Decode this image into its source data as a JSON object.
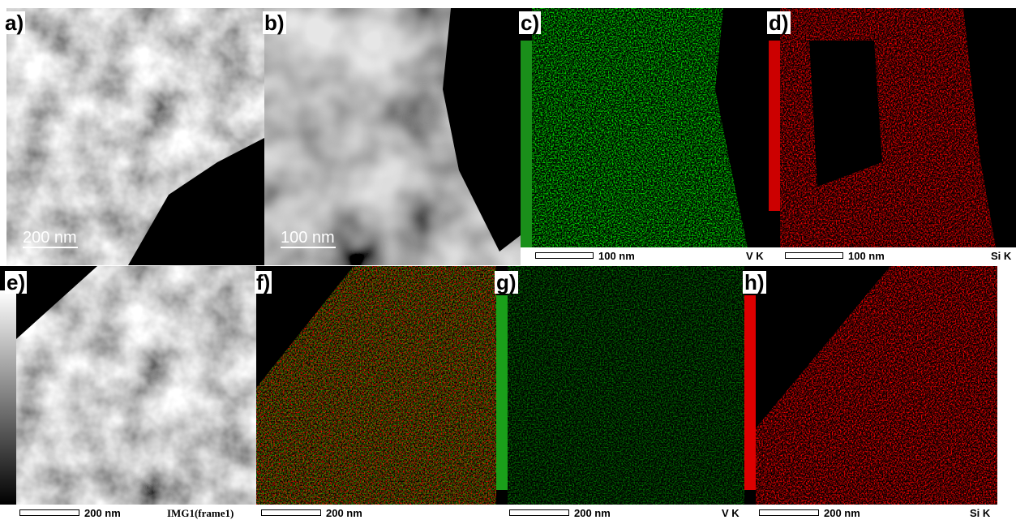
{
  "panels": [
    {
      "label": "a)",
      "scale_bar": "200 nm"
    },
    {
      "label": "b)",
      "scale_bar": "100 nm"
    },
    {
      "label": "c)",
      "scale_bar": "100 nm",
      "element": "V K"
    },
    {
      "label": "d)",
      "scale_bar": "100 nm",
      "element": "Si K"
    },
    {
      "label": "e)",
      "scale_bar": "200 nm",
      "caption": "IMG1(frame1)"
    },
    {
      "label": "f)",
      "scale_bar": "200 nm"
    },
    {
      "label": "g)",
      "scale_bar": "200 nm",
      "element": "V K"
    },
    {
      "label": "h)",
      "scale_bar": "200 nm",
      "element": "Si K"
    }
  ]
}
